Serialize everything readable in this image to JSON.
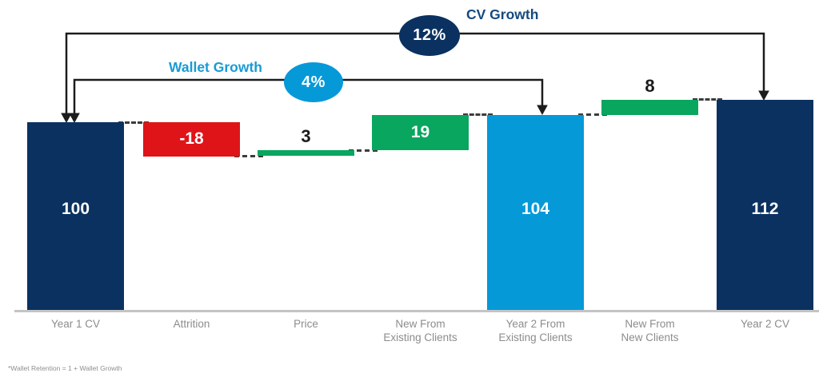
{
  "chart_data": {
    "type": "bar",
    "subtype": "waterfall",
    "title": "",
    "xlabel": "",
    "ylabel": "",
    "ylim": [
      0,
      112
    ],
    "grid": false,
    "categories": [
      "Year 1 CV",
      "Attrition",
      "Price",
      "New From Existing Clients",
      "Year 2 From Existing Clients",
      "New From New Clients",
      "Year 2 CV"
    ],
    "values": [
      100,
      -18,
      3,
      19,
      104,
      8,
      112
    ],
    "bars": [
      {
        "label_lines": [
          "Year 1 CV"
        ],
        "value": 100,
        "display": "100",
        "kind": "total",
        "color": "navy",
        "label_style": "inside-white"
      },
      {
        "label_lines": [
          "Attrition"
        ],
        "value": -18,
        "display": "-18",
        "kind": "delta",
        "color": "red",
        "label_style": "inside-white"
      },
      {
        "label_lines": [
          "Price"
        ],
        "value": 3,
        "display": "3",
        "kind": "delta",
        "color": "green",
        "label_style": "above-black"
      },
      {
        "label_lines": [
          "New From",
          "Existing Clients"
        ],
        "value": 19,
        "display": "19",
        "kind": "delta",
        "color": "green",
        "label_style": "inside-white"
      },
      {
        "label_lines": [
          "Year 2 From",
          "Existing Clients"
        ],
        "value": 104,
        "display": "104",
        "kind": "total",
        "color": "light_blue",
        "label_style": "inside-white"
      },
      {
        "label_lines": [
          "New From",
          "New Clients"
        ],
        "value": 8,
        "display": "8",
        "kind": "delta",
        "color": "green",
        "label_style": "above-black"
      },
      {
        "label_lines": [
          "Year 2 CV"
        ],
        "value": 112,
        "display": "112",
        "kind": "total",
        "color": "navy",
        "label_style": "inside-white"
      }
    ],
    "annotations": [
      {
        "name": "CV Growth",
        "badge": "12%",
        "color_key": "navy",
        "from_category": "Year 1 CV",
        "to_category": "Year 2 CV"
      },
      {
        "name": "Wallet Growth",
        "badge": "4%",
        "color_key": "light_blue",
        "from_category": "Year 1 CV",
        "to_category": "Year 2 From Existing Clients"
      }
    ]
  },
  "colors": {
    "navy": "#0a3160",
    "red": "#df1418",
    "green": "#09a65f",
    "light_blue": "#0599d8",
    "cv_growth_text": "#164a7e",
    "wallet_growth_text": "#179bd7",
    "axis_label": "#8c8c8c",
    "baseline": "#c4c4c4",
    "arrow_line": "#1c1c1c",
    "connector": "#3c3c3c",
    "footnote": "#8f8f8f"
  },
  "footnote": "*Wallet Retention = 1 + Wallet Growth"
}
